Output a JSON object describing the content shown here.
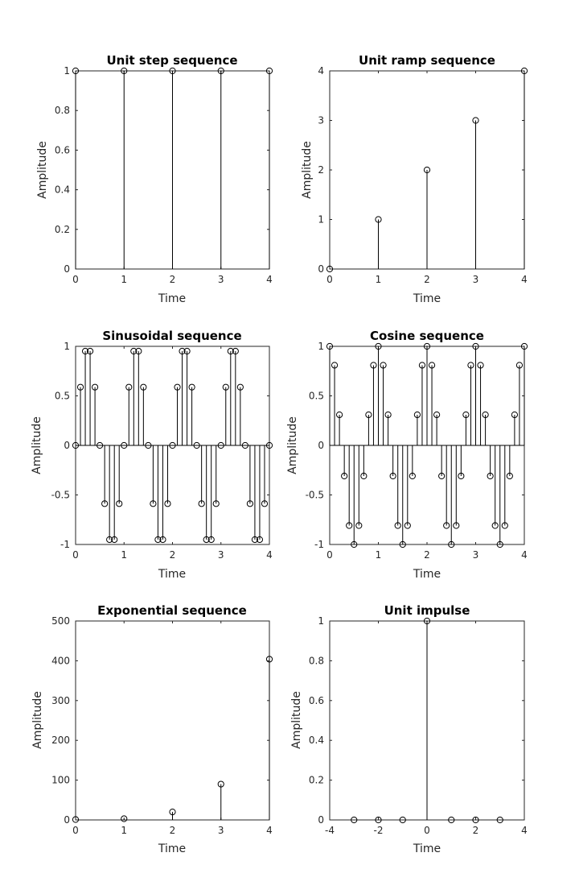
{
  "colors": {
    "background": "#ffffff",
    "axes": "#262626",
    "stem": "#000000"
  },
  "chart_data": [
    {
      "type": "stem",
      "title": "Unit step sequence",
      "xlabel": "Time",
      "ylabel": "Amplitude",
      "xlim": [
        0,
        4
      ],
      "ylim": [
        0,
        1
      ],
      "xticks": [
        "0",
        "1",
        "2",
        "3",
        "4"
      ],
      "yticks": [
        "0",
        "0.2",
        "0.4",
        "0.6",
        "0.8",
        "1"
      ],
      "x": [
        0,
        1,
        2,
        3,
        4
      ],
      "y": [
        1,
        1,
        1,
        1,
        1
      ],
      "grid": false
    },
    {
      "type": "stem",
      "title": "Unit ramp sequence",
      "xlabel": "Time",
      "ylabel": "Amplitude",
      "xlim": [
        0,
        4
      ],
      "ylim": [
        0,
        4
      ],
      "xticks": [
        "0",
        "1",
        "2",
        "3",
        "4"
      ],
      "yticks": [
        "0",
        "1",
        "2",
        "3",
        "4"
      ],
      "x": [
        0,
        1,
        2,
        3,
        4
      ],
      "y": [
        0,
        1,
        2,
        3,
        4
      ],
      "grid": false
    },
    {
      "type": "stem",
      "title": "Sinusoidal sequence",
      "xlabel": "Time",
      "ylabel": "Amplitude",
      "xlim": [
        0,
        4
      ],
      "ylim": [
        -1,
        1
      ],
      "xticks": [
        "0",
        "1",
        "2",
        "3",
        "4"
      ],
      "yticks": [
        "-1",
        "-0.5",
        "0",
        "0.5",
        "1"
      ],
      "x": [
        0,
        0.1,
        0.2,
        0.3,
        0.4,
        0.5,
        0.6,
        0.7,
        0.8,
        0.9,
        1.0,
        1.1,
        1.2,
        1.3,
        1.4,
        1.5,
        1.6,
        1.7,
        1.8,
        1.9,
        2.0,
        2.1,
        2.2,
        2.3,
        2.4,
        2.5,
        2.6,
        2.7,
        2.8,
        2.9,
        3.0,
        3.1,
        3.2,
        3.3,
        3.4,
        3.5,
        3.6,
        3.7,
        3.8,
        3.9,
        4.0
      ],
      "y": [
        0,
        0.588,
        0.951,
        0.951,
        0.588,
        0,
        -0.588,
        -0.951,
        -0.951,
        -0.588,
        0,
        0.588,
        0.951,
        0.951,
        0.588,
        0,
        -0.588,
        -0.951,
        -0.951,
        -0.588,
        0,
        0.588,
        0.951,
        0.951,
        0.588,
        0,
        -0.588,
        -0.951,
        -0.951,
        -0.588,
        0,
        0.588,
        0.951,
        0.951,
        0.588,
        0,
        -0.588,
        -0.951,
        -0.951,
        -0.588,
        0
      ],
      "baseline": 0,
      "grid": false
    },
    {
      "type": "stem",
      "title": "Cosine sequence",
      "xlabel": "Time",
      "ylabel": "Amplitude",
      "xlim": [
        0,
        4
      ],
      "ylim": [
        -1,
        1
      ],
      "xticks": [
        "0",
        "1",
        "2",
        "3",
        "4"
      ],
      "yticks": [
        "-1",
        "-0.5",
        "0",
        "0.5",
        "1"
      ],
      "x": [
        0,
        0.1,
        0.2,
        0.3,
        0.4,
        0.5,
        0.6,
        0.7,
        0.8,
        0.9,
        1.0,
        1.1,
        1.2,
        1.3,
        1.4,
        1.5,
        1.6,
        1.7,
        1.8,
        1.9,
        2.0,
        2.1,
        2.2,
        2.3,
        2.4,
        2.5,
        2.6,
        2.7,
        2.8,
        2.9,
        3.0,
        3.1,
        3.2,
        3.3,
        3.4,
        3.5,
        3.6,
        3.7,
        3.8,
        3.9,
        4.0
      ],
      "y": [
        1,
        0.809,
        0.309,
        -0.309,
        -0.809,
        -1,
        -0.809,
        -0.309,
        0.309,
        0.809,
        1,
        0.809,
        0.309,
        -0.309,
        -0.809,
        -1,
        -0.809,
        -0.309,
        0.309,
        0.809,
        1,
        0.809,
        0.309,
        -0.309,
        -0.809,
        -1,
        -0.809,
        -0.309,
        0.309,
        0.809,
        1,
        0.809,
        0.309,
        -0.309,
        -0.809,
        -1,
        -0.809,
        -0.309,
        0.309,
        0.809,
        1
      ],
      "baseline": 0,
      "grid": false
    },
    {
      "type": "stem",
      "title": "Exponential sequence",
      "xlabel": "Time",
      "ylabel": "Amplitude",
      "xlim": [
        0,
        4
      ],
      "ylim": [
        0,
        500
      ],
      "xticks": [
        "0",
        "1",
        "2",
        "3",
        "4"
      ],
      "yticks": [
        "0",
        "100",
        "200",
        "300",
        "400",
        "500"
      ],
      "x": [
        0,
        1,
        2,
        3,
        4
      ],
      "y": [
        1,
        3,
        20,
        90,
        404
      ],
      "grid": false
    },
    {
      "type": "stem",
      "title": "Unit impulse",
      "xlabel": "Time",
      "ylabel": "Amplitude",
      "xlim": [
        -4,
        4
      ],
      "ylim": [
        0,
        1
      ],
      "xticks": [
        "-4",
        "-2",
        "0",
        "2",
        "4"
      ],
      "yticks": [
        "0",
        "0.2",
        "0.4",
        "0.6",
        "0.8",
        "1"
      ],
      "x": [
        -3,
        -2,
        -1,
        0,
        1,
        2,
        3
      ],
      "y": [
        0,
        0,
        0,
        1,
        0,
        0,
        0
      ],
      "grid": false
    }
  ]
}
